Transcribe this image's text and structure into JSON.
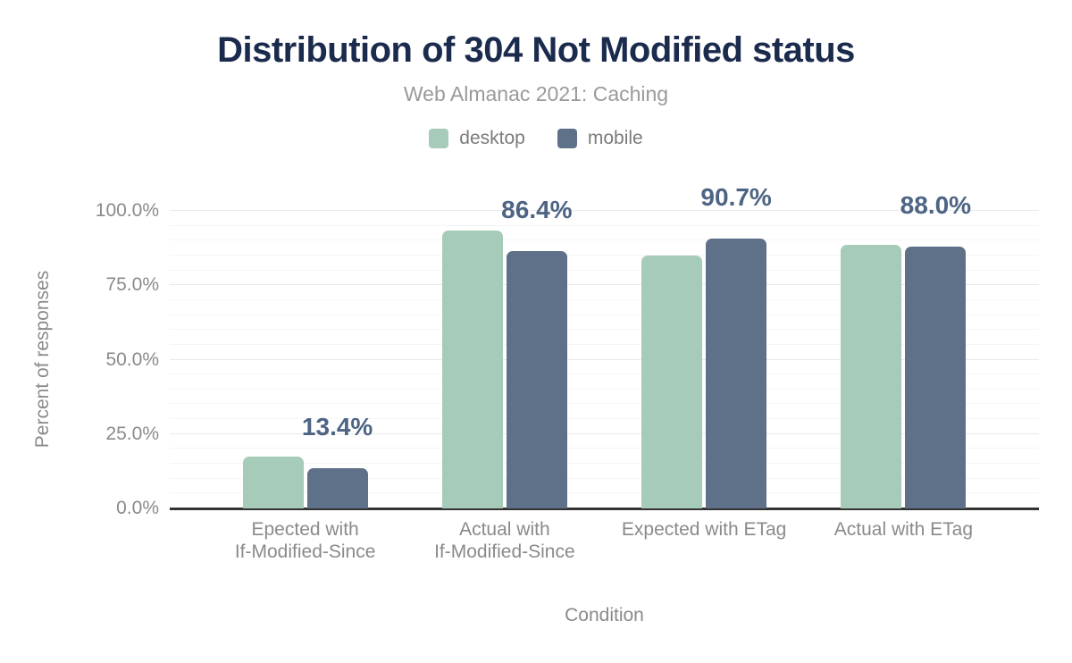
{
  "chart": {
    "title": "Distribution of 304 Not Modified status",
    "subtitle": "Web Almanac 2021: Caching"
  },
  "chart_data": {
    "type": "bar",
    "title": "Distribution of 304 Not Modified status",
    "subtitle": "Web Almanac 2021: Caching",
    "xlabel": "Condition",
    "ylabel": "Percent of responses",
    "categories": [
      "Epected with If-Modified-Since",
      "Actual with If-Modified-Since",
      "Expected with ETag",
      "Actual with ETag"
    ],
    "category_lines": [
      [
        "Epected with",
        "If-Modified-Since"
      ],
      [
        "Actual with",
        "If-Modified-Since"
      ],
      [
        "Expected with ETag"
      ],
      [
        "Actual with ETag"
      ]
    ],
    "series": [
      {
        "name": "desktop",
        "color": "#a7cbb9",
        "values": [
          17.4,
          93.4,
          85.1,
          88.6
        ]
      },
      {
        "name": "mobile",
        "color": "#5e7189",
        "values": [
          13.4,
          86.4,
          90.7,
          88.0
        ]
      }
    ],
    "annotations": [
      "13.4%",
      "86.4%",
      "90.7%",
      "88.0%"
    ],
    "annotation_series": "mobile",
    "y_ticks": [
      {
        "value": 0,
        "label": "0.0%"
      },
      {
        "value": 25,
        "label": "25.0%"
      },
      {
        "value": 50,
        "label": "50.0%"
      },
      {
        "value": 75,
        "label": "75.0%"
      },
      {
        "value": 100,
        "label": "100.0%"
      }
    ],
    "ylim": [
      0,
      100
    ],
    "minor_grid_step": 5,
    "major_grid_step": 25,
    "grid": true,
    "legend_position": "top"
  },
  "colors": {
    "title": "#1b2b4d",
    "subtitle": "#9a9a9a",
    "axis_text": "#8a8a8a",
    "annotation": "#4d6484",
    "axis_line": "#333333",
    "major_grid": "#e9e9e9",
    "minor_grid": "#f5f5f5",
    "background": "#ffffff"
  }
}
